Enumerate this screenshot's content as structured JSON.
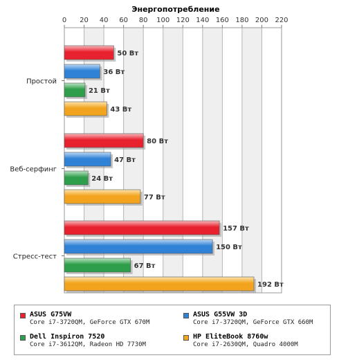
{
  "chart_data": {
    "type": "bar",
    "orientation": "horizontal",
    "title": "Энергопотребление",
    "categories": [
      "Простой",
      "Веб-серфинг",
      "Стресс-тест"
    ],
    "xlim": [
      0,
      220
    ],
    "xticks": [
      0,
      20,
      40,
      60,
      80,
      100,
      120,
      140,
      160,
      180,
      200,
      220
    ],
    "grid": true,
    "unit": "Вт",
    "series": [
      {
        "name": "ASUS G75VW",
        "desc": "Core i7-3720QM, GeForce GTX 670M",
        "color": "#e8212e",
        "light": "#f9b7bb",
        "values": [
          50,
          80,
          157
        ]
      },
      {
        "name": "ASUS G55VW 3D",
        "desc": "Core i7-3720QM, GeForce GTX 660M",
        "color": "#2f82d6",
        "light": "#bcd8f5",
        "values": [
          36,
          47,
          150
        ]
      },
      {
        "name": "Dell Inspiron 7520",
        "desc": "Core i7-3612QM, Radeon HD 7730M",
        "color": "#2e9e4a",
        "light": "#b9e3c2",
        "values": [
          21,
          24,
          67
        ]
      },
      {
        "name": "HP EliteBook 8760w",
        "desc": "Core i7-2630QM, Quadro 4000M",
        "color": "#f2a41f",
        "light": "#fde3ad",
        "values": [
          43,
          77,
          192
        ]
      }
    ],
    "legend": "bottom"
  }
}
